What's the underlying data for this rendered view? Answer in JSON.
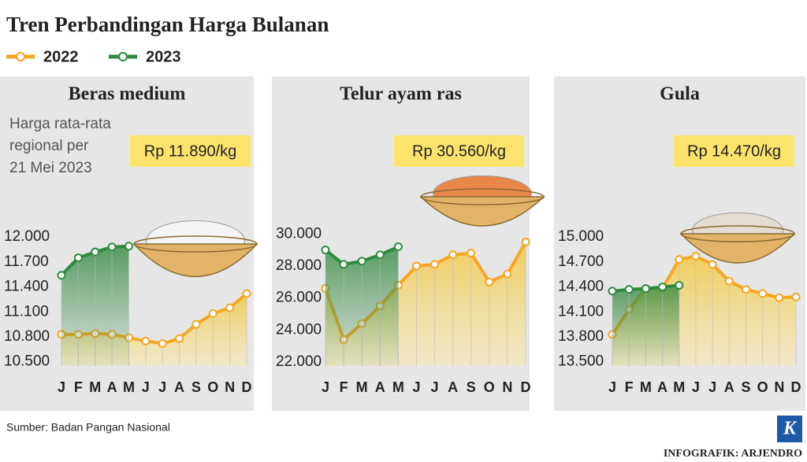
{
  "title": "Tren Perbandingan Harga Bulanan",
  "source": "Sumber: Badan Pangan Nasional",
  "credit": "INFOGRAFIK: ARJENDRO",
  "logo": "K",
  "chart_data": [
    {
      "type": "line",
      "title": "Beras medium",
      "note": [
        "Harga rata-rata",
        "regional per",
        "21 Mei 2023"
      ],
      "price_label": "Rp 11.890/kg",
      "categories": [
        "J",
        "F",
        "M",
        "A",
        "M",
        "J",
        "J",
        "A",
        "S",
        "O",
        "N",
        "D"
      ],
      "series": [
        {
          "name": "2022",
          "color": "#f5a623",
          "values": [
            10830,
            10830,
            10840,
            10830,
            10790,
            10750,
            10720,
            10780,
            10950,
            11080,
            11150,
            11320
          ]
        },
        {
          "name": "2023",
          "color": "#2e8b3e",
          "values": [
            11540,
            11750,
            11820,
            11880,
            11890,
            null,
            null,
            null,
            null,
            null,
            null,
            null
          ]
        }
      ],
      "ylim": [
        10450,
        12200
      ],
      "yticks": [
        {
          "value": 10500,
          "label": "10.500"
        },
        {
          "value": 10800,
          "label": "10.800"
        },
        {
          "value": 11100,
          "label": "11.100"
        },
        {
          "value": 11400,
          "label": "11.400"
        },
        {
          "value": 11700,
          "label": "11.700"
        },
        {
          "value": 12000,
          "label": "12.000"
        }
      ]
    },
    {
      "type": "line",
      "title": "Telur ayam ras",
      "price_label": "Rp 30.560/kg",
      "categories": [
        "J",
        "F",
        "M",
        "A",
        "M",
        "J",
        "J",
        "A",
        "S",
        "O",
        "N",
        "D"
      ],
      "series": [
        {
          "name": "2022",
          "color": "#f5a623",
          "values": [
            26600,
            23400,
            24400,
            25500,
            26800,
            28000,
            28100,
            28700,
            28800,
            27000,
            27500,
            29500
          ]
        },
        {
          "name": "2023",
          "color": "#2e8b3e",
          "values": [
            29000,
            28100,
            28300,
            28700,
            29200,
            null,
            null,
            null,
            null,
            null,
            null,
            null
          ]
        }
      ],
      "ylim": [
        21750,
        30850
      ],
      "yticks": [
        {
          "value": 22000,
          "label": "22.000"
        },
        {
          "value": 24000,
          "label": "24.000"
        },
        {
          "value": 26000,
          "label": "26.000"
        },
        {
          "value": 28000,
          "label": "28.000"
        },
        {
          "value": 30000,
          "label": "30.000"
        }
      ]
    },
    {
      "type": "line",
      "title": "Gula",
      "price_label": "Rp 14.470/kg",
      "categories": [
        "J",
        "F",
        "M",
        "A",
        "M",
        "J",
        "J",
        "A",
        "S",
        "O",
        "N",
        "D"
      ],
      "series": [
        {
          "name": "2022",
          "color": "#f5a623",
          "values": [
            13830,
            14130,
            14380,
            14380,
            14730,
            14770,
            14670,
            14470,
            14370,
            14320,
            14270,
            14280
          ]
        },
        {
          "name": "2023",
          "color": "#2e8b3e",
          "values": [
            14350,
            14370,
            14380,
            14400,
            14420,
            null,
            null,
            null,
            null,
            null,
            null,
            null
          ]
        }
      ],
      "ylim": [
        13450,
        15200
      ],
      "yticks": [
        {
          "value": 13500,
          "label": "13.500"
        },
        {
          "value": 13800,
          "label": "13.800"
        },
        {
          "value": 14100,
          "label": "14.100"
        },
        {
          "value": 14400,
          "label": "14.400"
        },
        {
          "value": 14700,
          "label": "14.700"
        },
        {
          "value": 15000,
          "label": "15.000"
        }
      ]
    }
  ]
}
